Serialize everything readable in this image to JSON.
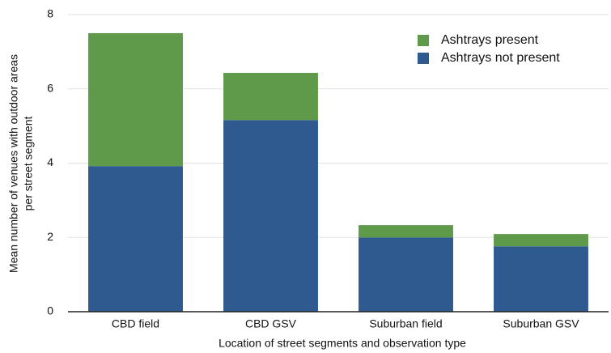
{
  "chart_data": {
    "type": "stacked_bar",
    "y_label": [
      "Mean number of venues with outdoor areas",
      "per street segment"
    ],
    "x_label": "Location of street segments and observation type",
    "categories": [
      "CBD field",
      "CBD GSV",
      "Suburban field",
      "Suburban GSV"
    ],
    "series": [
      {
        "name": "Ashtrays not present",
        "color": "#2f5a8f",
        "values": [
          3.92,
          5.16,
          2.0,
          1.76
        ]
      },
      {
        "name": "Ashtrays present",
        "color": "#5f9a4a",
        "values": [
          3.58,
          1.27,
          0.33,
          0.33
        ]
      }
    ],
    "ylim": [
      0,
      8
    ],
    "yticks": [
      0,
      2,
      4,
      6,
      8
    ],
    "grid": true,
    "legend": "upper right"
  }
}
